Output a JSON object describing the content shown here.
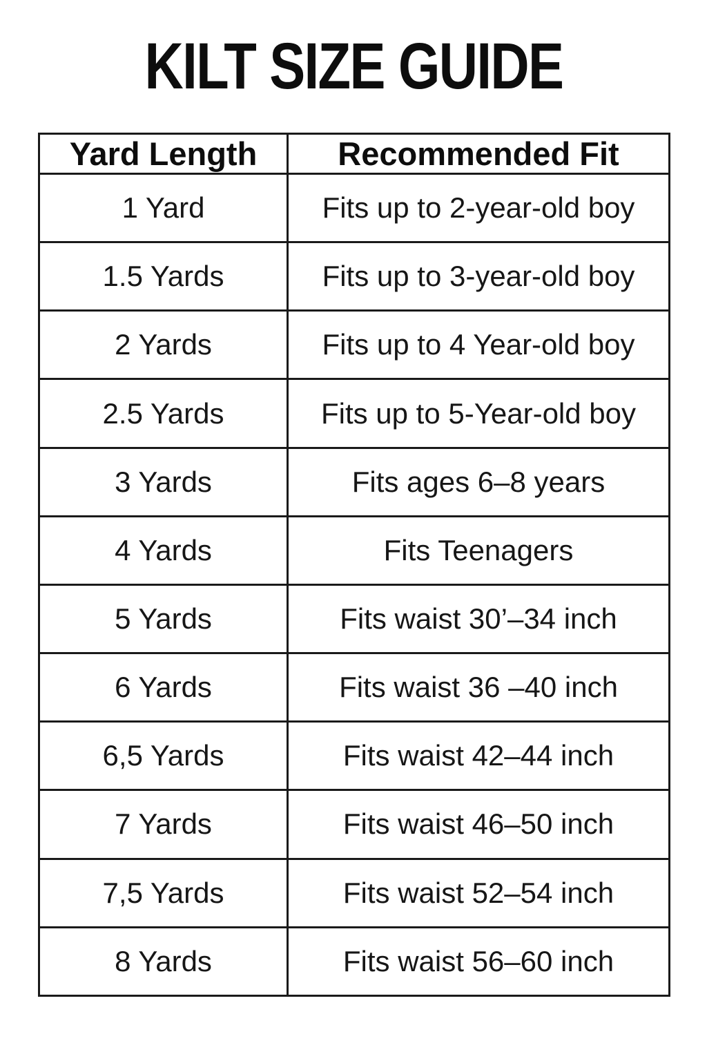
{
  "title": "KILT SIZE GUIDE",
  "table": {
    "headers": [
      "Yard Length",
      "Recommended Fit"
    ],
    "rows": [
      [
        "1 Yard",
        "Fits up to 2-year-old boy"
      ],
      [
        "1.5 Yards",
        "Fits up to 3-year-old boy"
      ],
      [
        "2 Yards",
        "Fits up to 4 Year-old boy"
      ],
      [
        "2.5 Yards",
        "Fits up to 5-Year-old boy"
      ],
      [
        "3 Yards",
        "Fits ages 6–8 years"
      ],
      [
        "4 Yards",
        "Fits Teenagers"
      ],
      [
        "5 Yards",
        "Fits waist 30’–34 inch"
      ],
      [
        "6 Yards",
        "Fits waist 36 –40 inch"
      ],
      [
        "6,5 Yards",
        "Fits waist 42–44 inch"
      ],
      [
        "7 Yards",
        "Fits waist 46–50 inch"
      ],
      [
        "7,5 Yards",
        "Fits waist 52–54 inch"
      ],
      [
        "8 Yards",
        "Fits waist 56–60 inch"
      ]
    ]
  },
  "colors": {
    "background": "#ffffff",
    "text": "#0f0f0f",
    "border": "#1a1a1a"
  }
}
